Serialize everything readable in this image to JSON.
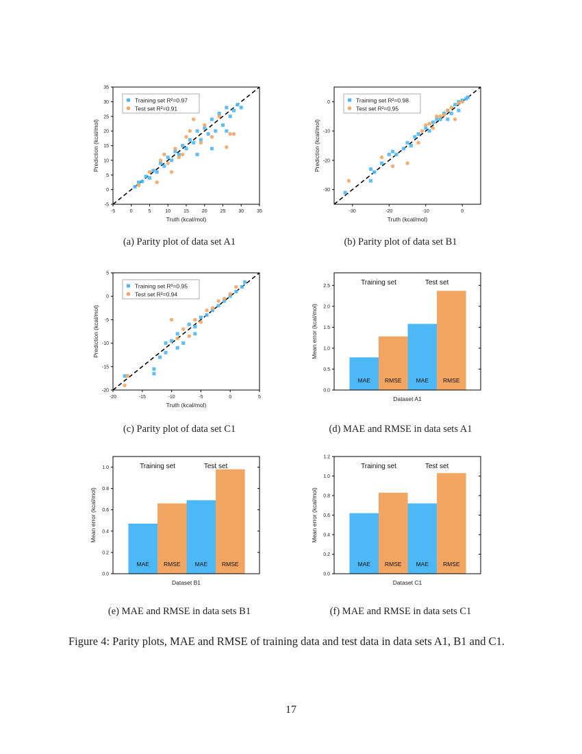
{
  "colors": {
    "training": "#4cb8f5",
    "test": "#f3a562",
    "diagonal": "#000000"
  },
  "captions": [
    "(a) Parity plot of data set A1",
    "(b) Parity plot of data set B1",
    "(c) Parity plot of data set C1",
    "(d) MAE and RMSE in data sets A1",
    "(e) MAE and RMSE in data sets B1",
    "(f) MAE and RMSE in data sets C1"
  ],
  "figure_caption": "Figure 4: Parity plots, MAE and RMSE of training data and test data in data sets A1, B1 and C1.",
  "page_number": "17",
  "chart_data": [
    {
      "type": "scatter",
      "xlabel": "Truth (kcal/mol)",
      "ylabel": "Prediction (kcal/mol)",
      "xlim": [
        -5,
        35
      ],
      "ylim": [
        -5,
        35
      ],
      "xticks": [
        -5,
        0,
        5,
        10,
        15,
        20,
        25,
        30,
        35
      ],
      "yticks": [
        -5,
        0,
        5,
        10,
        15,
        20,
        25,
        30,
        35
      ],
      "diagonal": true,
      "legend": "top-left",
      "series": [
        {
          "name": "Training set R²=0.97",
          "color": "training",
          "marker": "square",
          "points": [
            [
              1,
              1
            ],
            [
              2,
              2.5
            ],
            [
              3,
              2.8
            ],
            [
              4,
              4.5
            ],
            [
              5,
              4
            ],
            [
              6,
              6.5
            ],
            [
              7,
              6
            ],
            [
              8,
              9
            ],
            [
              9,
              8
            ],
            [
              10,
              11
            ],
            [
              11,
              10
            ],
            [
              12,
              13
            ],
            [
              13,
              12
            ],
            [
              14,
              15
            ],
            [
              15,
              14
            ],
            [
              16,
              17
            ],
            [
              17,
              16
            ],
            [
              18,
              20
            ],
            [
              19,
              17
            ],
            [
              20,
              21
            ],
            [
              21,
              19
            ],
            [
              22,
              24
            ],
            [
              23,
              20
            ],
            [
              24,
              26
            ],
            [
              25,
              22
            ],
            [
              26,
              28
            ],
            [
              27,
              25
            ],
            [
              28,
              27
            ],
            [
              29,
              29
            ],
            [
              30,
              28
            ],
            [
              22,
              14
            ],
            [
              26,
              20
            ],
            [
              18,
              12
            ]
          ]
        },
        {
          "name": "Test set  R²=0.91",
          "color": "test",
          "marker": "circle",
          "points": [
            [
              2,
              1.5
            ],
            [
              5,
              6
            ],
            [
              7,
              2.5
            ],
            [
              8,
              10
            ],
            [
              10,
              9
            ],
            [
              12,
              14
            ],
            [
              14,
              12
            ],
            [
              15,
              18
            ],
            [
              17,
              24
            ],
            [
              16,
              20
            ],
            [
              19,
              16
            ],
            [
              20,
              22
            ],
            [
              22,
              18
            ],
            [
              24,
              25
            ],
            [
              26,
              14.5
            ],
            [
              27,
              19
            ],
            [
              28,
              19
            ],
            [
              11,
              6
            ],
            [
              9,
              12
            ],
            [
              13,
              11
            ]
          ]
        }
      ]
    },
    {
      "type": "scatter",
      "xlabel": "Truth (kcal/mol)",
      "ylabel": "Prediction (kcal/mol)",
      "xlim": [
        -35,
        5
      ],
      "ylim": [
        -35,
        5
      ],
      "xticks": [
        -30,
        -20,
        -10,
        0
      ],
      "yticks": [
        -30,
        -20,
        -10,
        0
      ],
      "diagonal": true,
      "legend": "top-left",
      "series": [
        {
          "name": "Training set R²=0.98",
          "color": "training",
          "marker": "square",
          "points": [
            [
              -32,
              -31
            ],
            [
              -25,
              -27
            ],
            [
              -25,
              -23
            ],
            [
              -24,
              -24
            ],
            [
              -22,
              -21
            ],
            [
              -20,
              -18
            ],
            [
              -19,
              -17
            ],
            [
              -18,
              -18
            ],
            [
              -16,
              -16
            ],
            [
              -15,
              -14
            ],
            [
              -14,
              -15
            ],
            [
              -13,
              -12
            ],
            [
              -12,
              -11
            ],
            [
              -10,
              -9
            ],
            [
              -9,
              -10
            ],
            [
              -8,
              -7
            ],
            [
              -7,
              -6
            ],
            [
              -6,
              -6
            ],
            [
              -5,
              -4
            ],
            [
              -4,
              -3
            ],
            [
              -3,
              -4
            ],
            [
              -2,
              -1
            ],
            [
              -1,
              0
            ],
            [
              0,
              0.5
            ],
            [
              1,
              1
            ],
            [
              1.5,
              1.5
            ],
            [
              -1,
              -3
            ],
            [
              -4,
              -6
            ]
          ]
        },
        {
          "name": "Test set R²=0.95",
          "color": "test",
          "marker": "circle",
          "points": [
            [
              -31,
              -27
            ],
            [
              -22,
              -19
            ],
            [
              -19,
              -22
            ],
            [
              -15,
              -21
            ],
            [
              -12,
              -14
            ],
            [
              -10,
              -8
            ],
            [
              -9,
              -7.5
            ],
            [
              -7,
              -5
            ],
            [
              -6,
              -5
            ],
            [
              -5,
              -4.5
            ],
            [
              -4,
              -3
            ],
            [
              -3,
              -2
            ],
            [
              -2,
              -6
            ],
            [
              -1,
              -0.5
            ],
            [
              0,
              0
            ],
            [
              -8,
              -9
            ],
            [
              -11,
              -10
            ]
          ]
        }
      ]
    },
    {
      "type": "scatter",
      "xlabel": "Truth (kcal/mol)",
      "ylabel": "Prediction (kcal/mol)",
      "xlim": [
        -20,
        5
      ],
      "ylim": [
        -20,
        5
      ],
      "xticks": [
        -20,
        -15,
        -10,
        -5,
        0,
        5
      ],
      "yticks": [
        -20,
        -15,
        -10,
        -5,
        0,
        5
      ],
      "diagonal": true,
      "legend": "top-left",
      "series": [
        {
          "name": "Training set R²=0.95",
          "color": "training",
          "marker": "square",
          "points": [
            [
              -18,
              -17
            ],
            [
              -13,
              -16.5
            ],
            [
              -13,
              -15.5
            ],
            [
              -12,
              -13
            ],
            [
              -11,
              -10
            ],
            [
              -10,
              -9.5
            ],
            [
              -9,
              -8
            ],
            [
              -8,
              -10
            ],
            [
              -7,
              -6
            ],
            [
              -6,
              -6.5
            ],
            [
              -5,
              -4.5
            ],
            [
              -4,
              -4
            ],
            [
              -3,
              -3
            ],
            [
              -2,
              -2
            ],
            [
              -1,
              -1
            ],
            [
              0,
              0
            ],
            [
              1,
              1
            ],
            [
              2,
              2
            ],
            [
              2.5,
              3
            ],
            [
              -9,
              -11
            ],
            [
              -6,
              -8
            ],
            [
              -11,
              -12
            ]
          ]
        },
        {
          "name": "Test set R²=0.94",
          "color": "test",
          "marker": "circle",
          "points": [
            [
              -18,
              -19
            ],
            [
              -17.5,
              -17
            ],
            [
              -10,
              -5
            ],
            [
              -8,
              -7
            ],
            [
              -6,
              -5
            ],
            [
              -5,
              -5.5
            ],
            [
              -4,
              -3
            ],
            [
              -3,
              -2.5
            ],
            [
              -2,
              -1
            ],
            [
              -1,
              -0.5
            ],
            [
              0,
              0.5
            ],
            [
              1,
              2
            ],
            [
              -7,
              -8.5
            ],
            [
              -9,
              -9
            ]
          ]
        }
      ]
    },
    {
      "type": "bar",
      "xlabel": "Dataset A1",
      "ylabel": "Mean error (kcal/mol)",
      "ylim": [
        0,
        2.8
      ],
      "yticks": [
        0.0,
        0.5,
        1.0,
        1.5,
        2.0,
        2.5
      ],
      "groups": [
        "Training set",
        "Test set"
      ],
      "categories": [
        "MAE",
        "RMSE",
        "MAE",
        "RMSE"
      ],
      "values": [
        0.78,
        1.28,
        1.58,
        2.37
      ],
      "bar_colors": [
        "training",
        "test",
        "training",
        "test"
      ]
    },
    {
      "type": "bar",
      "xlabel": "Dataset B1",
      "ylabel": "Mean error (kcal/mol)",
      "ylim": [
        0,
        1.1
      ],
      "yticks": [
        0.0,
        0.2,
        0.4,
        0.6,
        0.8,
        1.0
      ],
      "groups": [
        "Training set",
        "Test set"
      ],
      "categories": [
        "MAE",
        "RMSE",
        "MAE",
        "RMSE"
      ],
      "values": [
        0.47,
        0.66,
        0.69,
        0.98
      ],
      "bar_colors": [
        "training",
        "test",
        "training",
        "test"
      ]
    },
    {
      "type": "bar",
      "xlabel": "Dataset C1",
      "ylabel": "Mean error (kcal/mol)",
      "ylim": [
        0,
        1.2
      ],
      "yticks": [
        0.0,
        0.2,
        0.4,
        0.6,
        0.8,
        1.0,
        1.2
      ],
      "groups": [
        "Training set",
        "Test set"
      ],
      "categories": [
        "MAE",
        "RMSE",
        "MAE",
        "RMSE"
      ],
      "values": [
        0.62,
        0.83,
        0.72,
        1.03
      ],
      "bar_colors": [
        "training",
        "test",
        "training",
        "test"
      ]
    }
  ]
}
